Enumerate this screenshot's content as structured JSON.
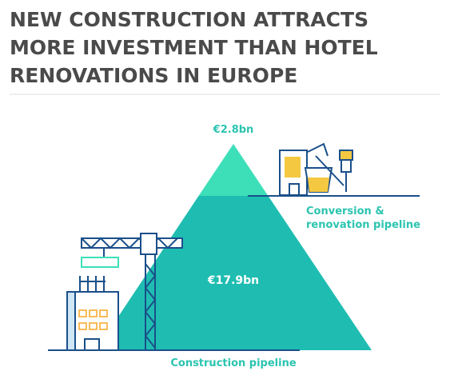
{
  "header": {
    "title_lines": [
      "NEW CONSTRUCTION ATTRACTS",
      "MORE INVESTMENT THAN HOTEL",
      "RENOVATIONS IN EUROPE"
    ]
  },
  "pyramid": {
    "top": {
      "value_label": "€2.8bn",
      "name_lines": [
        "Conversion &",
        "renovation pipeline"
      ]
    },
    "bottom": {
      "value_label": "€17.9bn",
      "name": "Construction pipeline"
    }
  }
}
